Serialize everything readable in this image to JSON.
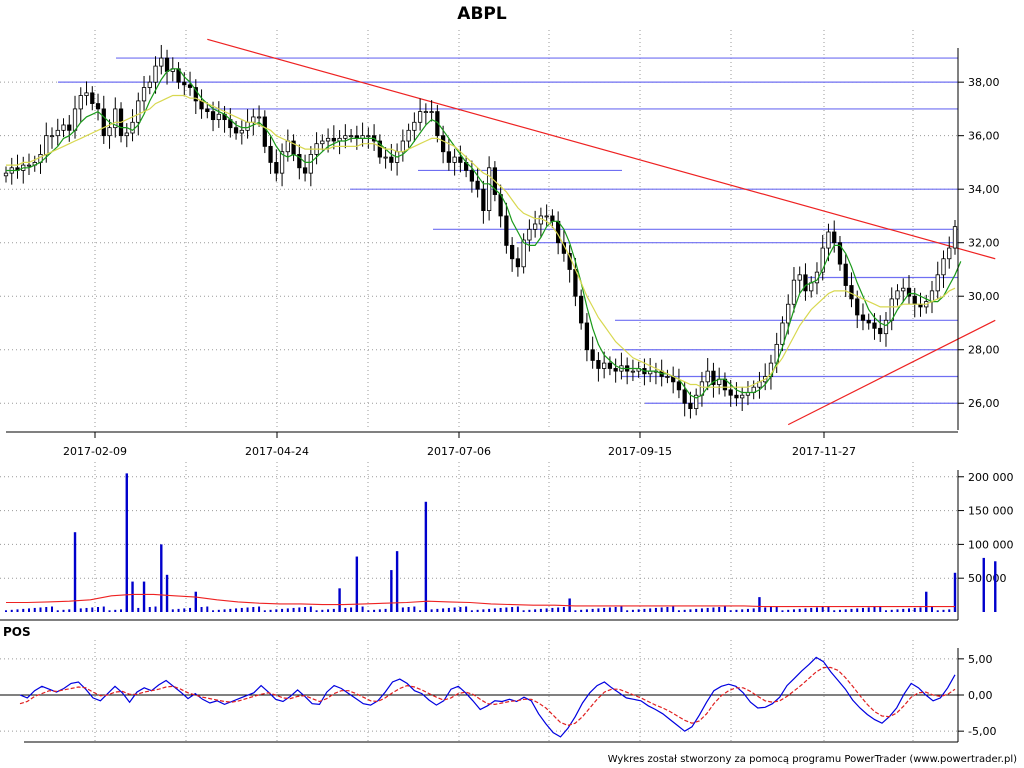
{
  "chart_data": {
    "type": "candlestick",
    "title": "ABPL",
    "footer": "Wykres został stworzony za pomocą programu PowerTrader (www.powertrader.pl)",
    "x_tick_labels": [
      "2017-02-09",
      "2017-04-24",
      "2017-07-06",
      "2017-09-15",
      "2017-11-27"
    ],
    "price_panel": {
      "ylim": [
        25.0,
        39.8
      ],
      "y_ticks": [
        26,
        28,
        30,
        32,
        34,
        36,
        38
      ],
      "y_tick_labels": [
        "26,00",
        "28,00",
        "30,00",
        "32,00",
        "34,00",
        "36,00",
        "38,00"
      ],
      "series": [
        {
          "name": "close",
          "color": "#000000",
          "values": [
            34.6,
            34.8,
            34.7,
            34.9,
            34.9,
            35.0,
            35.3,
            36.0,
            36.0,
            36.2,
            36.4,
            36.2,
            37.0,
            37.5,
            37.6,
            37.2,
            37.0,
            36.0,
            36.3,
            37.0,
            36.0,
            36.1,
            36.5,
            37.3,
            37.8,
            38.0,
            38.6,
            38.9,
            38.4,
            38.5,
            38.0,
            37.9,
            37.8,
            37.3,
            37.0,
            36.9,
            36.6,
            36.8,
            36.6,
            36.3,
            36.1,
            36.2,
            36.5,
            36.7,
            36.7,
            35.6,
            35.0,
            34.6,
            35.4,
            35.8,
            35.3,
            34.8,
            34.6,
            35.3,
            35.7,
            35.8,
            35.9,
            35.8,
            35.9,
            36.0,
            36.0,
            35.9,
            36.0,
            36.0,
            35.8,
            35.2,
            35.2,
            35.0,
            35.4,
            35.8,
            36.2,
            36.5,
            36.9,
            36.9,
            36.9,
            36.0,
            35.4,
            35.0,
            35.2,
            35.0,
            34.7,
            34.3,
            34.0,
            33.2,
            34.8,
            33.8,
            33.0,
            31.9,
            31.4,
            31.1,
            32.1,
            32.5,
            32.7,
            33.0,
            33.0,
            32.8,
            32.0,
            31.6,
            31.0,
            30.0,
            29.0,
            28.0,
            27.6,
            27.3,
            27.5,
            27.3,
            27.2,
            27.4,
            27.2,
            27.2,
            27.3,
            27.1,
            27.2,
            27.2,
            27.0,
            27.0,
            26.8,
            26.5,
            26.0,
            25.8,
            26.3,
            26.8,
            27.2,
            26.7,
            26.9,
            26.5,
            26.3,
            26.2,
            26.3,
            26.4,
            26.6,
            26.8,
            27.0,
            27.5,
            28.2,
            29.0,
            29.7,
            30.6,
            30.8,
            30.2,
            30.5,
            30.9,
            31.8,
            32.4,
            32.0,
            31.2,
            30.4,
            29.9,
            29.3,
            29.1,
            29.0,
            28.8,
            28.6,
            29.1,
            29.9,
            30.2,
            30.3,
            30.0,
            29.7,
            29.6,
            29.8,
            30.2,
            30.8,
            31.4,
            31.8,
            32.6
          ]
        },
        {
          "name": "ma-short",
          "color": "#1a9a1a",
          "values": [
            34.7,
            34.7,
            34.7,
            34.8,
            34.8,
            34.9,
            35.0,
            35.2,
            35.4,
            35.6,
            35.9,
            36.0,
            36.2,
            36.5,
            36.7,
            36.8,
            36.9,
            36.7,
            36.5,
            36.4,
            36.3,
            36.3,
            36.2,
            36.4,
            36.8,
            37.3,
            37.7,
            38.1,
            38.4,
            38.5,
            38.5,
            38.2,
            38.0,
            37.7,
            37.4,
            37.2,
            37.0,
            36.9,
            36.8,
            36.6,
            36.4,
            36.3,
            36.3,
            36.4,
            36.5,
            36.3,
            36.0,
            35.6,
            35.3,
            35.2,
            35.3,
            35.2,
            35.0,
            35.0,
            35.2,
            35.4,
            35.6,
            35.7,
            35.8,
            35.8,
            35.9,
            35.9,
            35.9,
            35.9,
            35.9,
            35.7,
            35.5,
            35.3,
            35.2,
            35.3,
            35.5,
            35.8,
            36.1,
            36.4,
            36.6,
            36.5,
            36.2,
            35.9,
            35.6,
            35.3,
            35.0,
            34.8,
            34.5,
            34.2,
            34.2,
            34.0,
            33.8,
            33.4,
            32.8,
            32.4,
            32.0,
            31.9,
            31.9,
            32.2,
            32.6,
            32.8,
            32.8,
            32.5,
            32.0,
            31.3,
            30.5,
            29.6,
            28.8,
            28.2,
            27.8,
            27.6,
            27.4,
            27.3,
            27.3,
            27.3,
            27.3,
            27.2,
            27.2,
            27.2,
            27.1,
            27.1,
            27.0,
            26.9,
            26.6,
            26.3,
            26.2,
            26.3,
            26.6,
            26.8,
            26.9,
            26.9,
            26.7,
            26.5,
            26.4,
            26.4,
            26.4,
            26.5,
            26.7,
            27.0,
            27.5,
            28.1,
            28.8,
            29.5,
            30.1,
            30.4,
            30.5,
            30.6,
            31.0,
            31.5,
            31.9,
            31.9,
            31.6,
            31.1,
            30.5,
            30.0,
            29.5,
            29.2,
            29.0,
            28.9,
            29.1,
            29.5,
            29.8,
            30.1,
            30.1,
            30.0,
            29.9,
            29.8,
            29.8,
            30.0,
            30.4,
            30.8,
            31.3
          ]
        },
        {
          "name": "ma-long",
          "color": "#d8d850",
          "values": [
            34.9,
            34.9,
            34.9,
            35.0,
            35.0,
            35.1,
            35.2,
            35.3,
            35.4,
            35.5,
            35.6,
            35.7,
            35.8,
            35.9,
            36.0,
            36.1,
            36.2,
            36.3,
            36.4,
            36.5,
            36.5,
            36.6,
            36.7,
            36.8,
            36.9,
            37.0,
            37.2,
            37.3,
            37.4,
            37.5,
            37.5,
            37.5,
            37.4,
            37.4,
            37.3,
            37.2,
            37.1,
            37.0,
            36.9,
            36.8,
            36.7,
            36.6,
            36.5,
            36.5,
            36.4,
            36.3,
            36.2,
            36.0,
            35.9,
            35.8,
            35.7,
            35.6,
            35.5,
            35.5,
            35.5,
            35.5,
            35.5,
            35.6,
            35.6,
            35.6,
            35.6,
            35.6,
            35.7,
            35.7,
            35.7,
            35.6,
            35.5,
            35.5,
            35.4,
            35.4,
            35.5,
            35.6,
            35.7,
            35.8,
            35.9,
            35.9,
            35.8,
            35.7,
            35.6,
            35.4,
            35.2,
            35.0,
            34.8,
            34.6,
            34.5,
            34.3,
            34.1,
            33.9,
            33.6,
            33.3,
            33.1,
            33.0,
            32.9,
            32.9,
            32.8,
            32.6,
            32.3,
            31.9,
            31.5,
            31.0,
            30.5,
            30.0,
            29.6,
            29.2,
            28.9,
            28.6,
            28.3,
            28.1,
            27.9,
            27.7,
            27.6,
            27.5,
            27.4,
            27.3,
            27.2,
            27.1,
            27.0,
            26.9,
            26.8,
            26.7,
            26.7,
            26.6,
            26.6,
            26.6,
            26.6,
            26.6,
            26.6,
            26.6,
            26.6,
            26.6,
            26.7,
            26.8,
            26.9,
            27.1,
            27.4,
            27.7,
            28.1,
            28.5,
            28.9,
            29.2,
            29.5,
            29.7,
            29.9,
            30.1,
            30.2,
            30.2,
            30.2,
            30.1,
            30.0,
            29.9,
            29.8,
            29.7,
            29.6,
            29.6,
            29.6,
            29.6,
            29.7,
            29.7,
            29.7,
            29.7,
            29.7,
            29.8,
            29.9,
            30.0,
            30.2,
            30.3
          ]
        }
      ],
      "resistance_levels": [
        38.9,
        38.0,
        37.0,
        34.7,
        34.0,
        32.5,
        32.0,
        30.7,
        29.1,
        28.0,
        27.0,
        26.0
      ],
      "trend_lines": [
        {
          "from": {
            "bar": 35,
            "value": 39.6
          },
          "to": {
            "bar": 172,
            "value": 31.4
          }
        },
        {
          "from": {
            "bar": 136,
            "value": 25.2
          },
          "to": {
            "bar": 172,
            "value": 29.1
          }
        }
      ]
    },
    "volume_panel": {
      "ylim": [
        0,
        210000
      ],
      "y_ticks": [
        50000,
        100000,
        150000,
        200000
      ],
      "y_tick_labels": [
        "50 000",
        "100 000",
        "150 000",
        "200 000"
      ],
      "spikes": [
        {
          "bar": 12,
          "value": 118000
        },
        {
          "bar": 21,
          "value": 205000
        },
        {
          "bar": 22,
          "value": 45000
        },
        {
          "bar": 24,
          "value": 45000
        },
        {
          "bar": 27,
          "value": 100000
        },
        {
          "bar": 28,
          "value": 55000
        },
        {
          "bar": 33,
          "value": 30000
        },
        {
          "bar": 58,
          "value": 35000
        },
        {
          "bar": 61,
          "value": 82000
        },
        {
          "bar": 67,
          "value": 62000
        },
        {
          "bar": 68,
          "value": 90000
        },
        {
          "bar": 73,
          "value": 163000
        },
        {
          "bar": 98,
          "value": 20000
        },
        {
          "bar": 131,
          "value": 22000
        },
        {
          "bar": 160,
          "value": 30000
        },
        {
          "bar": 165,
          "value": 58000
        },
        {
          "bar": 170,
          "value": 80000
        },
        {
          "bar": 172,
          "value": 75000
        }
      ],
      "average": [
        14000,
        14000,
        15000,
        16000,
        18000,
        24000,
        26000,
        26000,
        24000,
        22000,
        18000,
        15000,
        13000,
        12000,
        12000,
        11000,
        11000,
        12000,
        13000,
        14000,
        16000,
        15000,
        14000,
        12000,
        11000,
        10000,
        10000,
        9000,
        9000,
        9000,
        9000,
        9000,
        9000,
        9000,
        9000,
        9000,
        8000,
        8000,
        8000,
        8000,
        8000,
        8000,
        8000,
        8000,
        8000,
        8000
      ]
    },
    "pos_panel": {
      "label": "POS",
      "ylim": [
        -6.5,
        6.5
      ],
      "y_ticks": [
        -5,
        0,
        5
      ],
      "y_tick_labels": [
        "-5,00",
        "0,00",
        "5,00"
      ],
      "series": [
        {
          "name": "pos",
          "color": "#0000e0",
          "values": [
            0,
            -0.4,
            0.6,
            1.2,
            0.8,
            0.4,
            0.9,
            1.6,
            1.8,
            0.8,
            -0.4,
            -0.8,
            0.2,
            1.2,
            0.3,
            -1.0,
            0.4,
            1.0,
            0.6,
            1.4,
            2.0,
            1.2,
            0.4,
            -0.5,
            0.2,
            -0.6,
            -1.1,
            -0.8,
            -1.3,
            -0.9,
            -0.5,
            -0.1,
            0.3,
            1.3,
            0.4,
            -0.6,
            -0.9,
            -0.2,
            0.7,
            -0.2,
            -1.2,
            -1.3,
            0.4,
            1.3,
            0.9,
            0.2,
            -0.5,
            -1.2,
            -1.4,
            -0.8,
            0.4,
            1.8,
            2.2,
            1.6,
            0.6,
            0.2,
            -0.7,
            -1.4,
            -0.8,
            0.8,
            1.2,
            0.3,
            -0.8,
            -2.0,
            -1.5,
            -0.8,
            -0.9,
            -0.6,
            -0.9,
            -0.3,
            -0.8,
            -2.6,
            -4.0,
            -5.2,
            -5.8,
            -4.6,
            -3.0,
            -1.1,
            0.3,
            1.3,
            1.8,
            1.0,
            0.3,
            -0.4,
            -0.6,
            -0.8,
            -1.5,
            -2.0,
            -2.6,
            -3.4,
            -4.2,
            -5.0,
            -4.4,
            -2.8,
            -1.0,
            0.6,
            1.2,
            1.5,
            1.2,
            0.3,
            -1.0,
            -1.8,
            -1.7,
            -1.2,
            -0.3,
            1.3,
            2.3,
            3.3,
            4.2,
            5.2,
            4.6,
            3.2,
            2.0,
            0.8,
            -0.7,
            -1.8,
            -2.7,
            -3.4,
            -3.9,
            -3.0,
            -1.8,
            0.1,
            1.6,
            1.0,
            0.0,
            -0.8,
            -0.4,
            1.0,
            2.8
          ]
        },
        {
          "name": "pos-signal",
          "color": "#e02020",
          "values": [
            -1.2,
            -0.9,
            -0.2,
            0.2,
            0.6,
            0.5,
            0.7,
            0.9,
            1.1,
            1.0,
            0.4,
            -0.1,
            0.0,
            0.4,
            0.5,
            0.1,
            0.1,
            0.4,
            0.6,
            0.8,
            1.1,
            1.2,
            0.8,
            0.3,
            0.0,
            -0.3,
            -0.5,
            -0.7,
            -0.9,
            -1.0,
            -0.8,
            -0.5,
            -0.2,
            0.1,
            0.3,
            0.0,
            -0.4,
            -0.5,
            -0.2,
            -0.1,
            -0.5,
            -0.9,
            -0.5,
            0.2,
            0.6,
            0.6,
            0.2,
            -0.3,
            -0.8,
            -0.9,
            -0.4,
            0.3,
            0.9,
            1.3,
            1.1,
            0.7,
            0.2,
            -0.3,
            -0.7,
            -0.4,
            0.2,
            0.4,
            0.1,
            -0.6,
            -1.2,
            -1.3,
            -1.1,
            -0.9,
            -0.8,
            -0.6,
            -0.6,
            -1.1,
            -1.8,
            -2.8,
            -3.8,
            -4.2,
            -3.9,
            -3.0,
            -1.8,
            -0.6,
            0.4,
            0.8,
            0.8,
            0.4,
            0.0,
            -0.4,
            -0.9,
            -1.4,
            -1.8,
            -2.3,
            -2.9,
            -3.5,
            -3.9,
            -3.6,
            -2.6,
            -1.2,
            -0.1,
            0.6,
            1.0,
            1.0,
            0.5,
            -0.2,
            -0.8,
            -1.0,
            -0.8,
            -0.2,
            0.6,
            1.4,
            2.3,
            3.2,
            3.8,
            3.8,
            3.4,
            2.4,
            1.2,
            -0.1,
            -1.3,
            -2.3,
            -2.9,
            -3.0,
            -2.5,
            -1.5,
            -0.3,
            0.3,
            0.4,
            0.0,
            -0.2,
            0.1,
            0.8
          ]
        }
      ]
    },
    "colors": {
      "grid": "#9a9a9a",
      "levels": "#6f6ff2",
      "trend": "#ee2222",
      "volume_bar": "#0000cc",
      "volume_avg": "#ee2222",
      "candle_up": "#ffffff",
      "candle_down": "#000000"
    }
  }
}
